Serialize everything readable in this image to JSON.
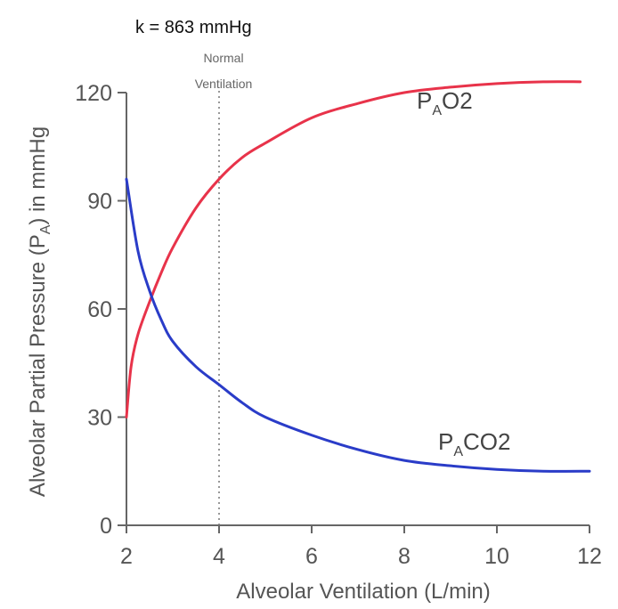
{
  "chart_data": {
    "type": "line",
    "annotation": "k = 863 mmHg",
    "xlabel": "Alveolar Ventilation (L/min)",
    "ylabel": {
      "before": "Alveolar Partial Pressure (P",
      "sub": "A",
      "after": ") in mmHg"
    },
    "xlim": [
      2,
      12
    ],
    "ylim": [
      0,
      120
    ],
    "x_ticks": [
      "2",
      "4",
      "6",
      "8",
      "10",
      "12"
    ],
    "y_ticks": [
      "0",
      "30",
      "60",
      "90",
      "120"
    ],
    "grid": false,
    "reference_line": {
      "x": 4,
      "label_line1": "Normal",
      "label_line2": "Ventilation"
    },
    "series": [
      {
        "label_main": "P",
        "label_sub": "A",
        "label_end": "O2",
        "color": "#e8334a",
        "x": [
          2.0,
          2.1,
          2.25,
          2.5,
          2.75,
          3.0,
          3.5,
          4.0,
          4.5,
          5.0,
          6.0,
          7.0,
          8.0,
          9.0,
          10.0,
          11.0,
          11.8
        ],
        "y": [
          30,
          44,
          53,
          62,
          70,
          77,
          88,
          96,
          102,
          106,
          113,
          117,
          120,
          121.5,
          122.5,
          123,
          123
        ]
      },
      {
        "label_main": "P",
        "label_sub": "A",
        "label_end": "CO2",
        "color": "#2a3cc8",
        "x": [
          2.0,
          2.25,
          2.5,
          2.75,
          3.0,
          3.5,
          4.0,
          4.5,
          5.0,
          6.0,
          7.0,
          8.0,
          9.0,
          10.0,
          11.0,
          12.0
        ],
        "y": [
          96,
          76,
          65,
          57,
          51,
          44,
          39,
          34,
          30,
          25,
          21,
          18,
          16.5,
          15.5,
          15,
          15
        ]
      }
    ]
  }
}
